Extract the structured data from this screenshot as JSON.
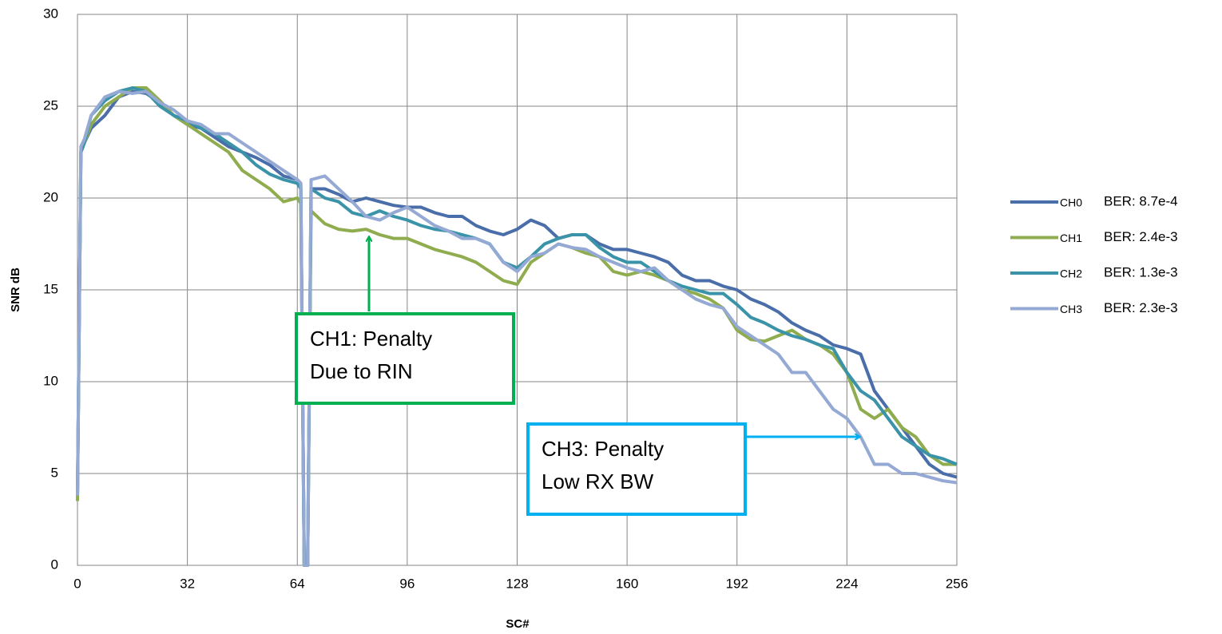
{
  "chart_data": {
    "type": "line",
    "x_label": "SC#",
    "y_label": "SNR dB",
    "x": [
      0,
      1,
      2,
      4,
      8,
      12,
      16,
      20,
      24,
      28,
      32,
      36,
      40,
      44,
      48,
      52,
      56,
      60,
      64,
      65,
      66,
      67,
      68,
      72,
      76,
      80,
      84,
      88,
      92,
      96,
      100,
      104,
      108,
      112,
      116,
      120,
      124,
      128,
      132,
      136,
      140,
      144,
      148,
      152,
      156,
      160,
      164,
      168,
      172,
      176,
      180,
      184,
      188,
      192,
      196,
      200,
      204,
      208,
      212,
      216,
      220,
      224,
      228,
      232,
      236,
      240,
      244,
      248,
      252,
      256
    ],
    "series": [
      {
        "name": "CH0",
        "ber": "BER: 8.7e-4",
        "color": "#4a6ea9",
        "values": [
          3.8,
          22.5,
          23,
          23.8,
          24.5,
          25.5,
          25.8,
          25.7,
          25.2,
          24.5,
          24,
          23.8,
          23.3,
          22.8,
          22.5,
          22.2,
          21.8,
          21.2,
          21,
          20.8,
          0,
          0,
          20.5,
          20.5,
          20.2,
          19.8,
          20,
          19.8,
          19.6,
          19.5,
          19.5,
          19.2,
          19,
          19,
          18.5,
          18.2,
          18,
          18.3,
          18.8,
          18.5,
          17.8,
          18,
          18,
          17.5,
          17.2,
          17.2,
          17,
          16.8,
          16.5,
          15.8,
          15.5,
          15.5,
          15.2,
          15,
          14.5,
          14.2,
          13.8,
          13.2,
          12.8,
          12.5,
          12,
          11.8,
          11.5,
          9.5,
          8.5,
          7.5,
          6.5,
          5.5,
          5,
          4.8
        ]
      },
      {
        "name": "CH1",
        "ber": "BER: 2.4e-3",
        "color": "#8fac4e",
        "values": [
          3.5,
          22.5,
          23,
          24,
          25,
          25.5,
          26,
          26,
          25.3,
          24.5,
          24,
          23.5,
          23,
          22.5,
          21.5,
          21,
          20.5,
          19.8,
          20,
          19.7,
          0,
          0,
          19.3,
          18.6,
          18.3,
          18.2,
          18.3,
          18,
          17.8,
          17.8,
          17.5,
          17.2,
          17,
          16.8,
          16.5,
          16,
          15.5,
          15.3,
          16.5,
          17,
          17.5,
          17.3,
          17,
          16.8,
          16,
          15.8,
          16,
          15.8,
          15.5,
          15,
          14.8,
          14.5,
          14,
          12.8,
          12.3,
          12.2,
          12.5,
          12.8,
          12.3,
          12,
          11.5,
          10.5,
          8.5,
          8,
          8.5,
          7.5,
          7,
          6,
          5.5,
          5.5
        ]
      },
      {
        "name": "CH2",
        "ber": "BER: 1.3e-3",
        "color": "#3a93a8",
        "values": [
          3.8,
          22.5,
          23,
          24.5,
          25.3,
          25.8,
          26,
          25.8,
          25,
          24.5,
          24.2,
          23.8,
          23.5,
          23,
          22.5,
          21.8,
          21.3,
          21,
          20.8,
          20.5,
          0,
          0,
          20.5,
          20,
          19.8,
          19.2,
          19,
          19.3,
          19,
          18.8,
          18.5,
          18.3,
          18.2,
          18,
          17.8,
          17.5,
          16.5,
          16.2,
          16.8,
          17.5,
          17.8,
          18,
          18,
          17.3,
          16.8,
          16.5,
          16.5,
          16,
          15.5,
          15.2,
          15,
          14.8,
          14.8,
          14.2,
          13.5,
          13.2,
          12.8,
          12.5,
          12.3,
          12,
          11.8,
          10.5,
          9.5,
          9,
          8,
          7,
          6.5,
          6,
          5.8,
          5.5
        ]
      },
      {
        "name": "CH3",
        "ber": "BER: 2.3e-3",
        "color": "#94a9d3",
        "values": [
          3.8,
          22.8,
          23.2,
          24.5,
          25.5,
          25.8,
          25.7,
          25.8,
          25.2,
          24.8,
          24.2,
          24,
          23.5,
          23.5,
          23,
          22.5,
          22,
          21.5,
          21,
          20.8,
          0,
          0,
          21,
          21.2,
          20.5,
          19.8,
          19,
          18.8,
          19.2,
          19.5,
          19,
          18.5,
          18.2,
          17.8,
          17.8,
          17.5,
          16.5,
          16,
          16.8,
          17,
          17.5,
          17.3,
          17.2,
          16.8,
          16.5,
          16.2,
          16,
          16.2,
          15.5,
          15,
          14.5,
          14.2,
          14,
          13,
          12.5,
          12,
          11.5,
          10.5,
          10.5,
          9.5,
          8.5,
          8,
          7,
          5.5,
          5.5,
          5,
          5,
          4.8,
          4.6,
          4.5
        ]
      }
    ],
    "xlim": [
      0,
      256
    ],
    "xticks": [
      0,
      32,
      64,
      96,
      128,
      160,
      192,
      224,
      256
    ],
    "ylim": [
      0,
      30
    ],
    "yticks": [
      0,
      5,
      10,
      15,
      20,
      25,
      30
    ],
    "grid": true,
    "annotations": [
      {
        "lines": [
          "CH1: Penalty",
          "Due to RIN"
        ],
        "color": "#00b050"
      },
      {
        "lines": [
          "CH3: Penalty",
          "Low RX BW"
        ],
        "color": "#00b0f0"
      }
    ]
  }
}
